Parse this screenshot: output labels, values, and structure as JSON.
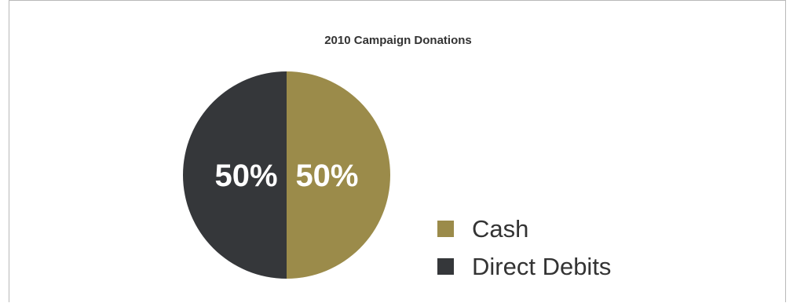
{
  "chart_data": {
    "type": "pie",
    "title": "2010 Campaign Donations",
    "categories": [
      "Cash",
      "Direct Debits"
    ],
    "values": [
      50,
      50
    ],
    "labels": [
      "50%",
      "50%"
    ],
    "colors": [
      "#9b8b4a",
      "#35373a"
    ],
    "legend": {
      "position": "right-bottom",
      "entries": [
        "Cash",
        "Direct Debits"
      ]
    }
  }
}
